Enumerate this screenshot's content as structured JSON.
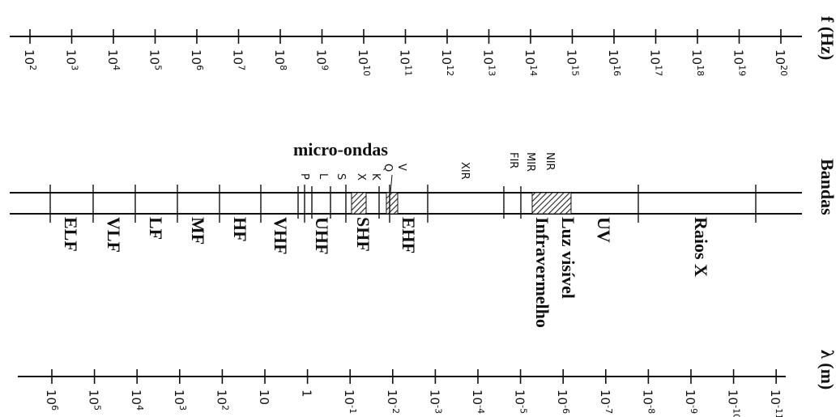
{
  "frequency_axis": {
    "label": "f (Hz)",
    "ticks": [
      {
        "base": "10",
        "exp": "2"
      },
      {
        "base": "10",
        "exp": "3"
      },
      {
        "base": "10",
        "exp": "4"
      },
      {
        "base": "10",
        "exp": "5"
      },
      {
        "base": "10",
        "exp": "6"
      },
      {
        "base": "10",
        "exp": "7"
      },
      {
        "base": "10",
        "exp": "8"
      },
      {
        "base": "10",
        "exp": "9"
      },
      {
        "base": "10",
        "exp": "10"
      },
      {
        "base": "10",
        "exp": "11"
      },
      {
        "base": "10",
        "exp": "12"
      },
      {
        "base": "10",
        "exp": "13"
      },
      {
        "base": "10",
        "exp": "14"
      },
      {
        "base": "10",
        "exp": "15"
      },
      {
        "base": "10",
        "exp": "16"
      },
      {
        "base": "10",
        "exp": "17"
      },
      {
        "base": "10",
        "exp": "18"
      },
      {
        "base": "10",
        "exp": "19"
      },
      {
        "base": "10",
        "exp": "20"
      }
    ]
  },
  "bands_axis": {
    "label": "Bandas",
    "microwave_label": "micro-ondas",
    "microwave_sublabels": [
      "P",
      "L",
      "S",
      "X",
      "K",
      "Q",
      "V"
    ],
    "infrared_sublabels": [
      "XIR",
      "FIR",
      "MIR",
      "NIR"
    ],
    "band_names": [
      "ELF",
      "VLF",
      "LF",
      "MF",
      "HF",
      "VHF",
      "UHF",
      "SHF",
      "EHF",
      "Infravermelho",
      "Luz visível",
      "UV",
      "Raios X"
    ]
  },
  "wavelength_axis": {
    "label": "λ (m)",
    "ticks": [
      {
        "base": "10",
        "exp": "6"
      },
      {
        "base": "10",
        "exp": "5"
      },
      {
        "base": "10",
        "exp": "4"
      },
      {
        "base": "10",
        "exp": "3"
      },
      {
        "base": "10",
        "exp": "2"
      },
      {
        "base": "10",
        "exp": ""
      },
      {
        "base": "1",
        "exp": ""
      },
      {
        "base": "10",
        "exp": "-1"
      },
      {
        "base": "10",
        "exp": "-2"
      },
      {
        "base": "10",
        "exp": "-3"
      },
      {
        "base": "10",
        "exp": "-4"
      },
      {
        "base": "10",
        "exp": "-5"
      },
      {
        "base": "10",
        "exp": "-6"
      },
      {
        "base": "10",
        "exp": "-7"
      },
      {
        "base": "10",
        "exp": "-8"
      },
      {
        "base": "10",
        "exp": "-9"
      },
      {
        "base": "10",
        "exp": "-10"
      },
      {
        "base": "10",
        "exp": "-11"
      }
    ]
  }
}
